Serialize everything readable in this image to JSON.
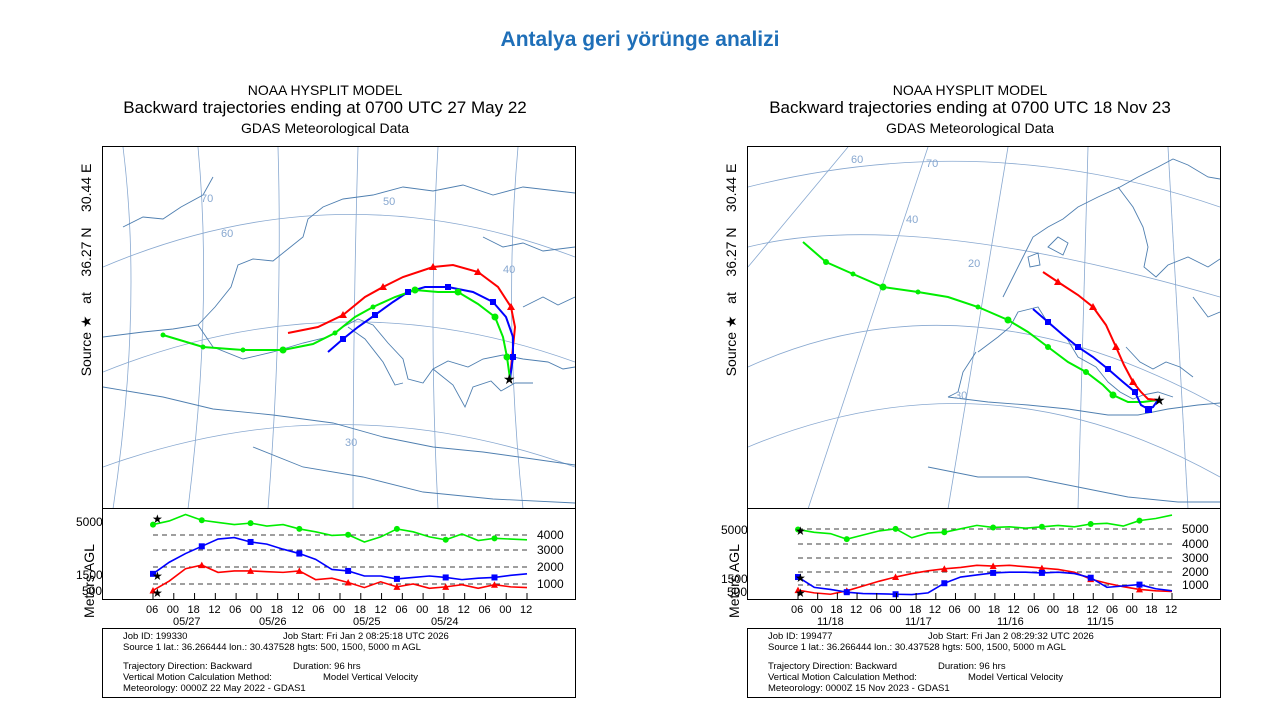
{
  "slide": {
    "title": "Antalya geri yörünge analizi"
  },
  "colors": {
    "title": "#1f6fb8",
    "red": "#ff0000",
    "blue": "#0000ff",
    "green": "#00ee00",
    "map": "#4f7fb0"
  },
  "chart_data": [
    {
      "type": "line",
      "title": "NOAA HYSPLIT MODEL",
      "subtitle": "Backward trajectories ending at 0700 UTC 27 May 22",
      "data_source": "GDAS Meteorological Data",
      "side_label": {
        "source": "Source",
        "at": "at",
        "lat": "36.27 N",
        "lon": "30.44 E"
      },
      "map_contour_labels": [
        "70",
        "60",
        "50",
        "40",
        "30"
      ],
      "height_plot": {
        "ylabel": "Meters AGL",
        "ylim": [
          0,
          5800
        ],
        "left_labels": [
          "5000",
          "1500",
          "500"
        ],
        "right_labels": [
          "4000",
          "3000",
          "2000",
          "1000"
        ],
        "x_ticks": [
          "06",
          "00",
          "18",
          "12",
          "06",
          "00",
          "18",
          "12",
          "06",
          "00",
          "18",
          "12",
          "06",
          "00",
          "18",
          "12",
          "06",
          "00",
          "12"
        ],
        "dates": [
          "05/27",
          "05/26",
          "05/25",
          "05/24"
        ],
        "series": [
          {
            "name": "500 m AGL",
            "color": "red",
            "values": [
              450,
              1100,
              1950,
              2200,
              1700,
              1800,
              1800,
              1750,
              1700,
              1800,
              1200,
              1300,
              1000,
              650,
              1050,
              700,
              900,
              600,
              700,
              850,
              600,
              850,
              700,
              650
            ]
          },
          {
            "name": "1500 m AGL",
            "color": "blue",
            "values": [
              1600,
              2400,
              3000,
              3500,
              4000,
              4100,
              3800,
              3650,
              3300,
              3000,
              2600,
              1900,
              1800,
              1450,
              1450,
              1250,
              1350,
              1450,
              1350,
              1200,
              1300,
              1350,
              1500,
              1600
            ]
          },
          {
            "name": "5000 m AGL",
            "color": "green",
            "values": [
              5000,
              5250,
              5700,
              5300,
              5150,
              5000,
              5100,
              4900,
              5000,
              4700,
              4500,
              4250,
              4300,
              3800,
              4150,
              4700,
              4500,
              4150,
              3950,
              4350,
              3900,
              4050,
              4000,
              3950
            ]
          }
        ]
      },
      "meta": {
        "job_id": "Job ID: 199330",
        "job_start": "Job Start: Fri Jan  2 08:25:18 UTC 2026",
        "source_line": "Source 1 lat.: 36.266444  lon.: 30.437528  hgts: 500, 1500, 5000 m AGL",
        "direction": "Trajectory Direction: Backward",
        "duration": "Duration: 96 hrs",
        "vertical_label": "Vertical Motion Calculation Method:",
        "vertical_value": "Model Vertical Velocity",
        "meteorology": "Meteorology: 0000Z 22 May 2022 - GDAS1"
      }
    },
    {
      "type": "line",
      "title": "NOAA HYSPLIT MODEL",
      "subtitle": "Backward trajectories ending at 0700 UTC 18 Nov 23",
      "data_source": "GDAS Meteorological Data",
      "side_label": {
        "source": "Source",
        "at": "at",
        "lat": "36.27 N",
        "lon": "30.44 E"
      },
      "map_contour_labels": [
        "60",
        "70",
        "40",
        "20",
        "30"
      ],
      "height_plot": {
        "ylabel": "Meters AGL",
        "ylim": [
          0,
          6100
        ],
        "left_labels": [
          "5000",
          "1500",
          "500"
        ],
        "right_labels": [
          "5000",
          "4000",
          "3000",
          "2000",
          "1000"
        ],
        "x_ticks": [
          "06",
          "00",
          "18",
          "12",
          "06",
          "00",
          "18",
          "12",
          "06",
          "00",
          "18",
          "12",
          "06",
          "00",
          "18",
          "12",
          "06",
          "00",
          "18",
          "12"
        ],
        "dates": [
          "11/18",
          "11/17",
          "11/16",
          "11/15"
        ],
        "series": [
          {
            "name": "500 m AGL",
            "color": "red",
            "values": [
              500,
              300,
              200,
              450,
              800,
              1150,
              1450,
              1700,
              1900,
              2050,
              2150,
              2300,
              2250,
              2300,
              2200,
              2100,
              2000,
              1800,
              1300,
              1000,
              750,
              550,
              450,
              400
            ]
          },
          {
            "name": "1500 m AGL",
            "color": "blue",
            "values": [
              1450,
              700,
              550,
              350,
              250,
              230,
              200,
              180,
              300,
              1000,
              1450,
              1600,
              1750,
              1800,
              1800,
              1750,
              1800,
              1700,
              1400,
              700,
              800,
              900,
              600,
              450
            ]
          },
          {
            "name": "5000 m AGL",
            "color": "green",
            "values": [
              4900,
              4700,
              4600,
              4200,
              4500,
              4800,
              4950,
              4300,
              4650,
              4700,
              4950,
              5200,
              5050,
              5100,
              5000,
              5100,
              5200,
              5100,
              5300,
              5350,
              5150,
              5550,
              5700,
              5950
            ]
          }
        ]
      },
      "meta": {
        "job_id": "Job ID: 199477",
        "job_start": "Job Start: Fri Jan  2 08:29:32 UTC 2026",
        "source_line": "Source 1 lat.: 36.266444  lon.: 30.437528  hgts: 500, 1500, 5000 m AGL",
        "direction": "Trajectory Direction: Backward",
        "duration": "Duration: 96 hrs",
        "vertical_label": "Vertical Motion Calculation Method:",
        "vertical_value": "Model Vertical Velocity",
        "meteorology": "Meteorology: 0000Z 15 Nov 2023 - GDAS1"
      }
    }
  ]
}
